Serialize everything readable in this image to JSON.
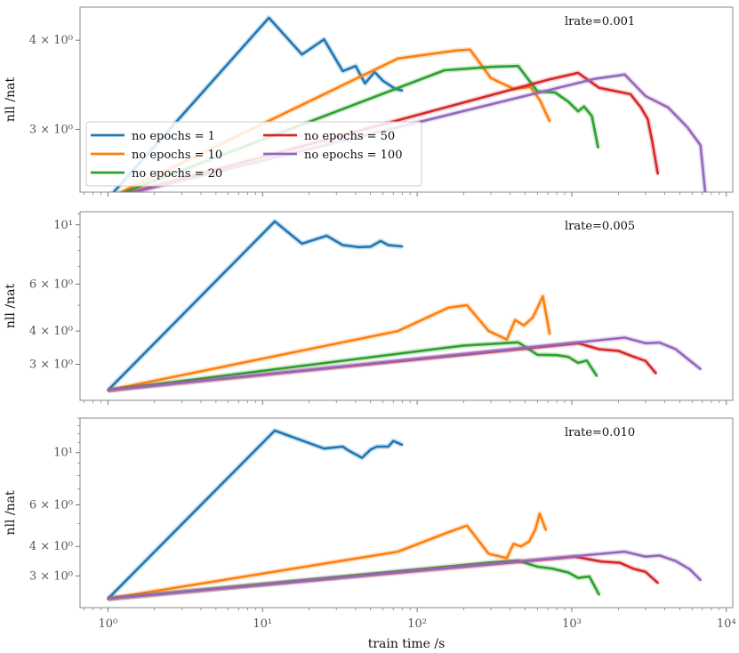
{
  "chart_data": {
    "type": "line",
    "x_scale": "log",
    "y_scale": "log",
    "xlabel": "train time /s",
    "ylabel": "nll /nat",
    "xlim": [
      0.66,
      11000
    ],
    "x_ticks": [
      {
        "value": 1,
        "label": "10⁰"
      },
      {
        "value": 10,
        "label": "10¹"
      },
      {
        "value": 100,
        "label": "10²"
      },
      {
        "value": 1000,
        "label": "10³"
      },
      {
        "value": 10000,
        "label": "10⁴"
      }
    ],
    "legend": {
      "placement": "center-left (top panel)",
      "entries": [
        "no epochs = 1",
        "no epochs = 10",
        "no epochs = 20",
        "no epochs = 50",
        "no epochs = 100"
      ]
    },
    "colors": [
      "#1f77b4",
      "#ff7f0e",
      "#2ca02c",
      "#d62728",
      "#9467bd"
    ],
    "panels": [
      {
        "label": "lrate=0.001",
        "ylim": [
          2.45,
          4.45
        ],
        "y_ticks": [
          {
            "value": 3,
            "label": "3 × 10⁰"
          },
          {
            "value": 4,
            "label": "4 × 10⁰"
          }
        ],
        "series": [
          {
            "name": "no epochs = 1",
            "points": [
              [
                1,
                2.4
              ],
              [
                11,
                4.3
              ],
              [
                18,
                3.82
              ],
              [
                25,
                4.01
              ],
              [
                33,
                3.62
              ],
              [
                40,
                3.68
              ],
              [
                46,
                3.48
              ],
              [
                53,
                3.61
              ],
              [
                60,
                3.51
              ],
              [
                72,
                3.42
              ],
              [
                80,
                3.4
              ]
            ]
          },
          {
            "name": "no epochs = 10",
            "points": [
              [
                1,
                2.4
              ],
              [
                75,
                3.77
              ],
              [
                180,
                3.87
              ],
              [
                220,
                3.88
              ],
              [
                300,
                3.54
              ],
              [
                420,
                3.42
              ],
              [
                540,
                3.44
              ],
              [
                620,
                3.3
              ],
              [
                720,
                3.08
              ]
            ]
          },
          {
            "name": "no epochs = 20",
            "points": [
              [
                1,
                2.4
              ],
              [
                150,
                3.63
              ],
              [
                300,
                3.67
              ],
              [
                450,
                3.68
              ],
              [
                600,
                3.39
              ],
              [
                780,
                3.38
              ],
              [
                950,
                3.28
              ],
              [
                1100,
                3.18
              ],
              [
                1200,
                3.23
              ],
              [
                1350,
                3.13
              ],
              [
                1480,
                2.83
              ]
            ]
          },
          {
            "name": "no epochs = 50",
            "points": [
              [
                1,
                2.4
              ],
              [
                700,
                3.52
              ],
              [
                1100,
                3.6
              ],
              [
                1500,
                3.43
              ],
              [
                2400,
                3.36
              ],
              [
                2800,
                3.22
              ],
              [
                3100,
                3.1
              ],
              [
                3300,
                2.9
              ],
              [
                3600,
                2.6
              ]
            ]
          },
          {
            "name": "no epochs = 100",
            "points": [
              [
                1,
                2.4
              ],
              [
                1400,
                3.53
              ],
              [
                2200,
                3.58
              ],
              [
                3000,
                3.34
              ],
              [
                4200,
                3.22
              ],
              [
                5600,
                3.02
              ],
              [
                6800,
                2.85
              ],
              [
                7300,
                2.45
              ]
            ]
          }
        ]
      },
      {
        "label": "lrate=0.005",
        "ylim": [
          2.2,
          11.2
        ],
        "y_ticks": [
          {
            "value": 3,
            "label": "3 × 10⁰"
          },
          {
            "value": 4,
            "label": "4 × 10⁰"
          },
          {
            "value": 6,
            "label": "6 × 10⁰"
          },
          {
            "value": 10,
            "label": "10¹"
          }
        ],
        "series": [
          {
            "name": "no epochs = 1",
            "points": [
              [
                1,
                2.4
              ],
              [
                12,
                10.3
              ],
              [
                18,
                8.5
              ],
              [
                26,
                9.1
              ],
              [
                33,
                8.4
              ],
              [
                42,
                8.25
              ],
              [
                50,
                8.28
              ],
              [
                58,
                8.7
              ],
              [
                65,
                8.4
              ],
              [
                80,
                8.3
              ]
            ]
          },
          {
            "name": "no epochs = 10",
            "points": [
              [
                1,
                2.4
              ],
              [
                75,
                4.0
              ],
              [
                160,
                4.9
              ],
              [
                210,
                5.0
              ],
              [
                290,
                4.0
              ],
              [
                380,
                3.72
              ],
              [
                430,
                4.4
              ],
              [
                490,
                4.2
              ],
              [
                560,
                4.5
              ],
              [
                620,
                5.1
              ],
              [
                650,
                5.4
              ],
              [
                720,
                3.9
              ]
            ]
          },
          {
            "name": "no epochs = 20",
            "points": [
              [
                1,
                2.4
              ],
              [
                200,
                3.53
              ],
              [
                450,
                3.63
              ],
              [
                600,
                3.26
              ],
              [
                800,
                3.25
              ],
              [
                950,
                3.2
              ],
              [
                1100,
                3.04
              ],
              [
                1250,
                3.1
              ],
              [
                1450,
                2.72
              ]
            ]
          },
          {
            "name": "no epochs = 50",
            "points": [
              [
                1,
                2.4
              ],
              [
                1100,
                3.6
              ],
              [
                1500,
                3.42
              ],
              [
                2000,
                3.37
              ],
              [
                2500,
                3.21
              ],
              [
                3000,
                3.09
              ],
              [
                3500,
                2.78
              ]
            ]
          },
          {
            "name": "no epochs = 100",
            "points": [
              [
                1,
                2.4
              ],
              [
                2200,
                3.78
              ],
              [
                3000,
                3.6
              ],
              [
                3700,
                3.62
              ],
              [
                4700,
                3.42
              ],
              [
                5800,
                3.1
              ],
              [
                6800,
                2.88
              ]
            ]
          }
        ]
      },
      {
        "label": "lrate=0.010",
        "ylim": [
          2.2,
          14.0
        ],
        "y_ticks": [
          {
            "value": 3,
            "label": "3 × 10⁰"
          },
          {
            "value": 4,
            "label": "4 × 10⁰"
          },
          {
            "value": 6,
            "label": "6 × 10⁰"
          },
          {
            "value": 10,
            "label": "10¹"
          }
        ],
        "series": [
          {
            "name": "no epochs = 1",
            "points": [
              [
                1,
                2.4
              ],
              [
                12,
                12.4
              ],
              [
                25,
                10.4
              ],
              [
                33,
                10.6
              ],
              [
                36,
                10.2
              ],
              [
                44,
                9.5
              ],
              [
                50,
                10.3
              ],
              [
                55,
                10.6
              ],
              [
                65,
                10.6
              ],
              [
                70,
                11.2
              ],
              [
                80,
                10.8
              ]
            ]
          },
          {
            "name": "no epochs = 10",
            "points": [
              [
                1,
                2.4
              ],
              [
                75,
                3.8
              ],
              [
                160,
                4.6
              ],
              [
                210,
                4.9
              ],
              [
                290,
                3.72
              ],
              [
                380,
                3.57
              ],
              [
                420,
                4.1
              ],
              [
                470,
                4.0
              ],
              [
                530,
                4.2
              ],
              [
                580,
                4.7
              ],
              [
                620,
                5.5
              ],
              [
                680,
                4.7
              ]
            ]
          },
          {
            "name": "no epochs = 20",
            "points": [
              [
                1,
                2.4
              ],
              [
                300,
                3.42
              ],
              [
                450,
                3.48
              ],
              [
                600,
                3.28
              ],
              [
                750,
                3.22
              ],
              [
                950,
                3.1
              ],
              [
                1100,
                2.94
              ],
              [
                1300,
                2.98
              ],
              [
                1500,
                2.5
              ]
            ]
          },
          {
            "name": "no epochs = 50",
            "points": [
              [
                1,
                2.4
              ],
              [
                1050,
                3.62
              ],
              [
                1550,
                3.45
              ],
              [
                2050,
                3.41
              ],
              [
                2500,
                3.22
              ],
              [
                3000,
                3.12
              ],
              [
                3600,
                2.8
              ]
            ]
          },
          {
            "name": "no epochs = 100",
            "points": [
              [
                1,
                2.4
              ],
              [
                2200,
                3.8
              ],
              [
                3000,
                3.62
              ],
              [
                3700,
                3.66
              ],
              [
                4700,
                3.47
              ],
              [
                5800,
                3.2
              ],
              [
                6800,
                2.88
              ]
            ]
          }
        ]
      }
    ]
  }
}
